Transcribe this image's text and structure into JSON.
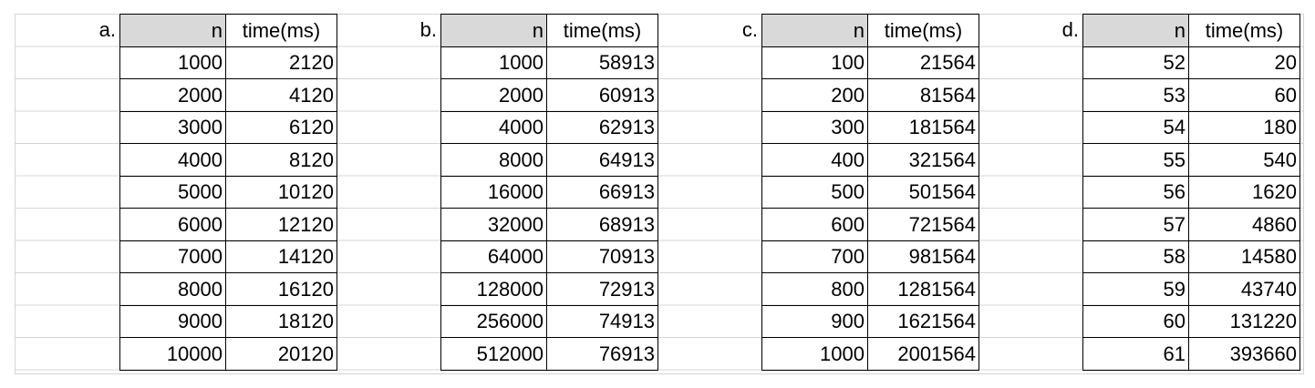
{
  "tables": [
    {
      "label": "a.",
      "header_n": "n",
      "header_time": "time(ms)",
      "rows": [
        [
          "1000",
          "2120"
        ],
        [
          "2000",
          "4120"
        ],
        [
          "3000",
          "6120"
        ],
        [
          "4000",
          "8120"
        ],
        [
          "5000",
          "10120"
        ],
        [
          "6000",
          "12120"
        ],
        [
          "7000",
          "14120"
        ],
        [
          "8000",
          "16120"
        ],
        [
          "9000",
          "18120"
        ],
        [
          "10000",
          "20120"
        ]
      ]
    },
    {
      "label": "b.",
      "header_n": "n",
      "header_time": "time(ms)",
      "rows": [
        [
          "1000",
          "58913"
        ],
        [
          "2000",
          "60913"
        ],
        [
          "4000",
          "62913"
        ],
        [
          "8000",
          "64913"
        ],
        [
          "16000",
          "66913"
        ],
        [
          "32000",
          "68913"
        ],
        [
          "64000",
          "70913"
        ],
        [
          "128000",
          "72913"
        ],
        [
          "256000",
          "74913"
        ],
        [
          "512000",
          "76913"
        ]
      ]
    },
    {
      "label": "c.",
      "header_n": "n",
      "header_time": "time(ms)",
      "rows": [
        [
          "100",
          "21564"
        ],
        [
          "200",
          "81564"
        ],
        [
          "300",
          "181564"
        ],
        [
          "400",
          "321564"
        ],
        [
          "500",
          "501564"
        ],
        [
          "600",
          "721564"
        ],
        [
          "700",
          "981564"
        ],
        [
          "800",
          "1281564"
        ],
        [
          "900",
          "1621564"
        ],
        [
          "1000",
          "2001564"
        ]
      ]
    },
    {
      "label": "d.",
      "header_n": "n",
      "header_time": "time(ms)",
      "rows": [
        [
          "52",
          "20"
        ],
        [
          "53",
          "60"
        ],
        [
          "54",
          "180"
        ],
        [
          "55",
          "540"
        ],
        [
          "56",
          "1620"
        ],
        [
          "57",
          "4860"
        ],
        [
          "58",
          "14580"
        ],
        [
          "59",
          "43740"
        ],
        [
          "60",
          "131220"
        ],
        [
          "61",
          "393660"
        ]
      ]
    }
  ]
}
